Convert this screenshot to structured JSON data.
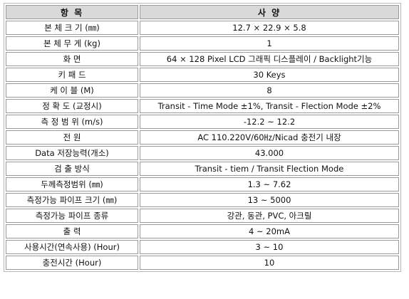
{
  "table": {
    "headers": [
      "항 목",
      "사 양"
    ],
    "rows": [
      {
        "item": "본 체 크 기 (㎜)",
        "spec": "12.7 × 22.9 × 5.8"
      },
      {
        "item": "본 체 무 게 (kg)",
        "spec": "1"
      },
      {
        "item": "화 면",
        "spec": "64 × 128 Pixel LCD 그래픽 디스플레이 / Backlight기능"
      },
      {
        "item": "키 패 드",
        "spec": "30 Keys"
      },
      {
        "item": "케 이 블 (M)",
        "spec": "8"
      },
      {
        "item": "정 확 도 (교정시)",
        "spec": "Transit - Time Mode ±1%, Transit - Flection Mode ±2%"
      },
      {
        "item": "측 정 범 위 (m/s)",
        "spec": "-12.2 ~ 12.2"
      },
      {
        "item": "전 원",
        "spec": "AC 110.220V/60㎐/Nicad 충전기 내장"
      },
      {
        "item": "Data 저장능력(개소)",
        "spec": "43.000"
      },
      {
        "item": "검 출 방식",
        "spec": "Transit - tiem / Transit Flection Mode"
      },
      {
        "item": "두께측정범위 (㎜)",
        "spec": "1.3 ~ 7.62"
      },
      {
        "item": "측정가능 파이프 크기 (㎜)",
        "spec": "13 ~ 5000"
      },
      {
        "item": "측정가능 파이프 종류",
        "spec": "강관, 동관, PVC, 아크릴"
      },
      {
        "item": "출 력",
        "spec": "4 ~ 20mA"
      },
      {
        "item": "사용시간(연속사용) (Hour)",
        "spec": "3 ~ 10"
      },
      {
        "item": "충전시간 (Hour)",
        "spec": "10"
      }
    ]
  }
}
